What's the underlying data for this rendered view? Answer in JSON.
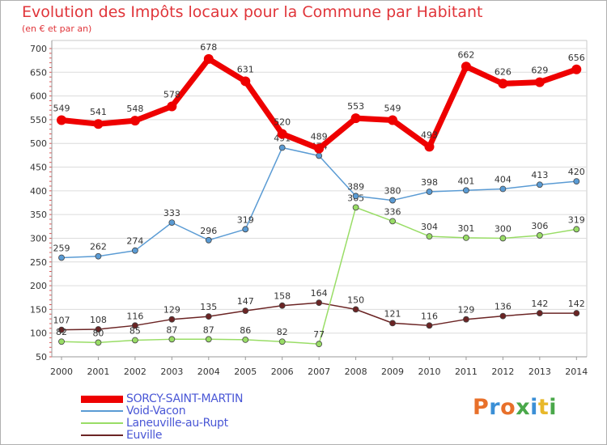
{
  "title": "Evolution des Impôts locaux pour la Commune par Habitant",
  "subtitle": "(en € et par an)",
  "brand": "Proxiti",
  "chart_data": {
    "type": "line",
    "x": [
      "2000",
      "2001",
      "2002",
      "2003",
      "2004",
      "2005",
      "2006",
      "2007",
      "2008",
      "2009",
      "2010",
      "2011",
      "2012",
      "2013",
      "2014"
    ],
    "ylim": [
      50,
      700
    ],
    "yticks": [
      50,
      100,
      150,
      200,
      250,
      300,
      350,
      400,
      450,
      500,
      550,
      600,
      650,
      700
    ],
    "grid": "horizontal",
    "legend_position": "bottom-left",
    "series": [
      {
        "name": "SORCY-SAINT-MARTIN",
        "color": "#ee0000",
        "values": [
          549,
          541,
          548,
          578,
          678,
          631,
          520,
          489,
          553,
          549,
          493,
          662,
          626,
          629,
          656
        ]
      },
      {
        "name": "Void-Vacon",
        "color": "#5a9bd4",
        "values": [
          259,
          262,
          274,
          333,
          296,
          319,
          491,
          474,
          389,
          380,
          398,
          401,
          404,
          413,
          420
        ]
      },
      {
        "name": "Laneuville-au-Rupt",
        "color": "#99dd66",
        "values": [
          82,
          80,
          85,
          87,
          87,
          86,
          82,
          77,
          365,
          336,
          304,
          301,
          300,
          306,
          319
        ]
      },
      {
        "name": "Euville",
        "color": "#6b2424",
        "values": [
          107,
          108,
          116,
          129,
          135,
          147,
          158,
          164,
          150,
          121,
          116,
          129,
          136,
          142,
          142
        ]
      }
    ]
  }
}
